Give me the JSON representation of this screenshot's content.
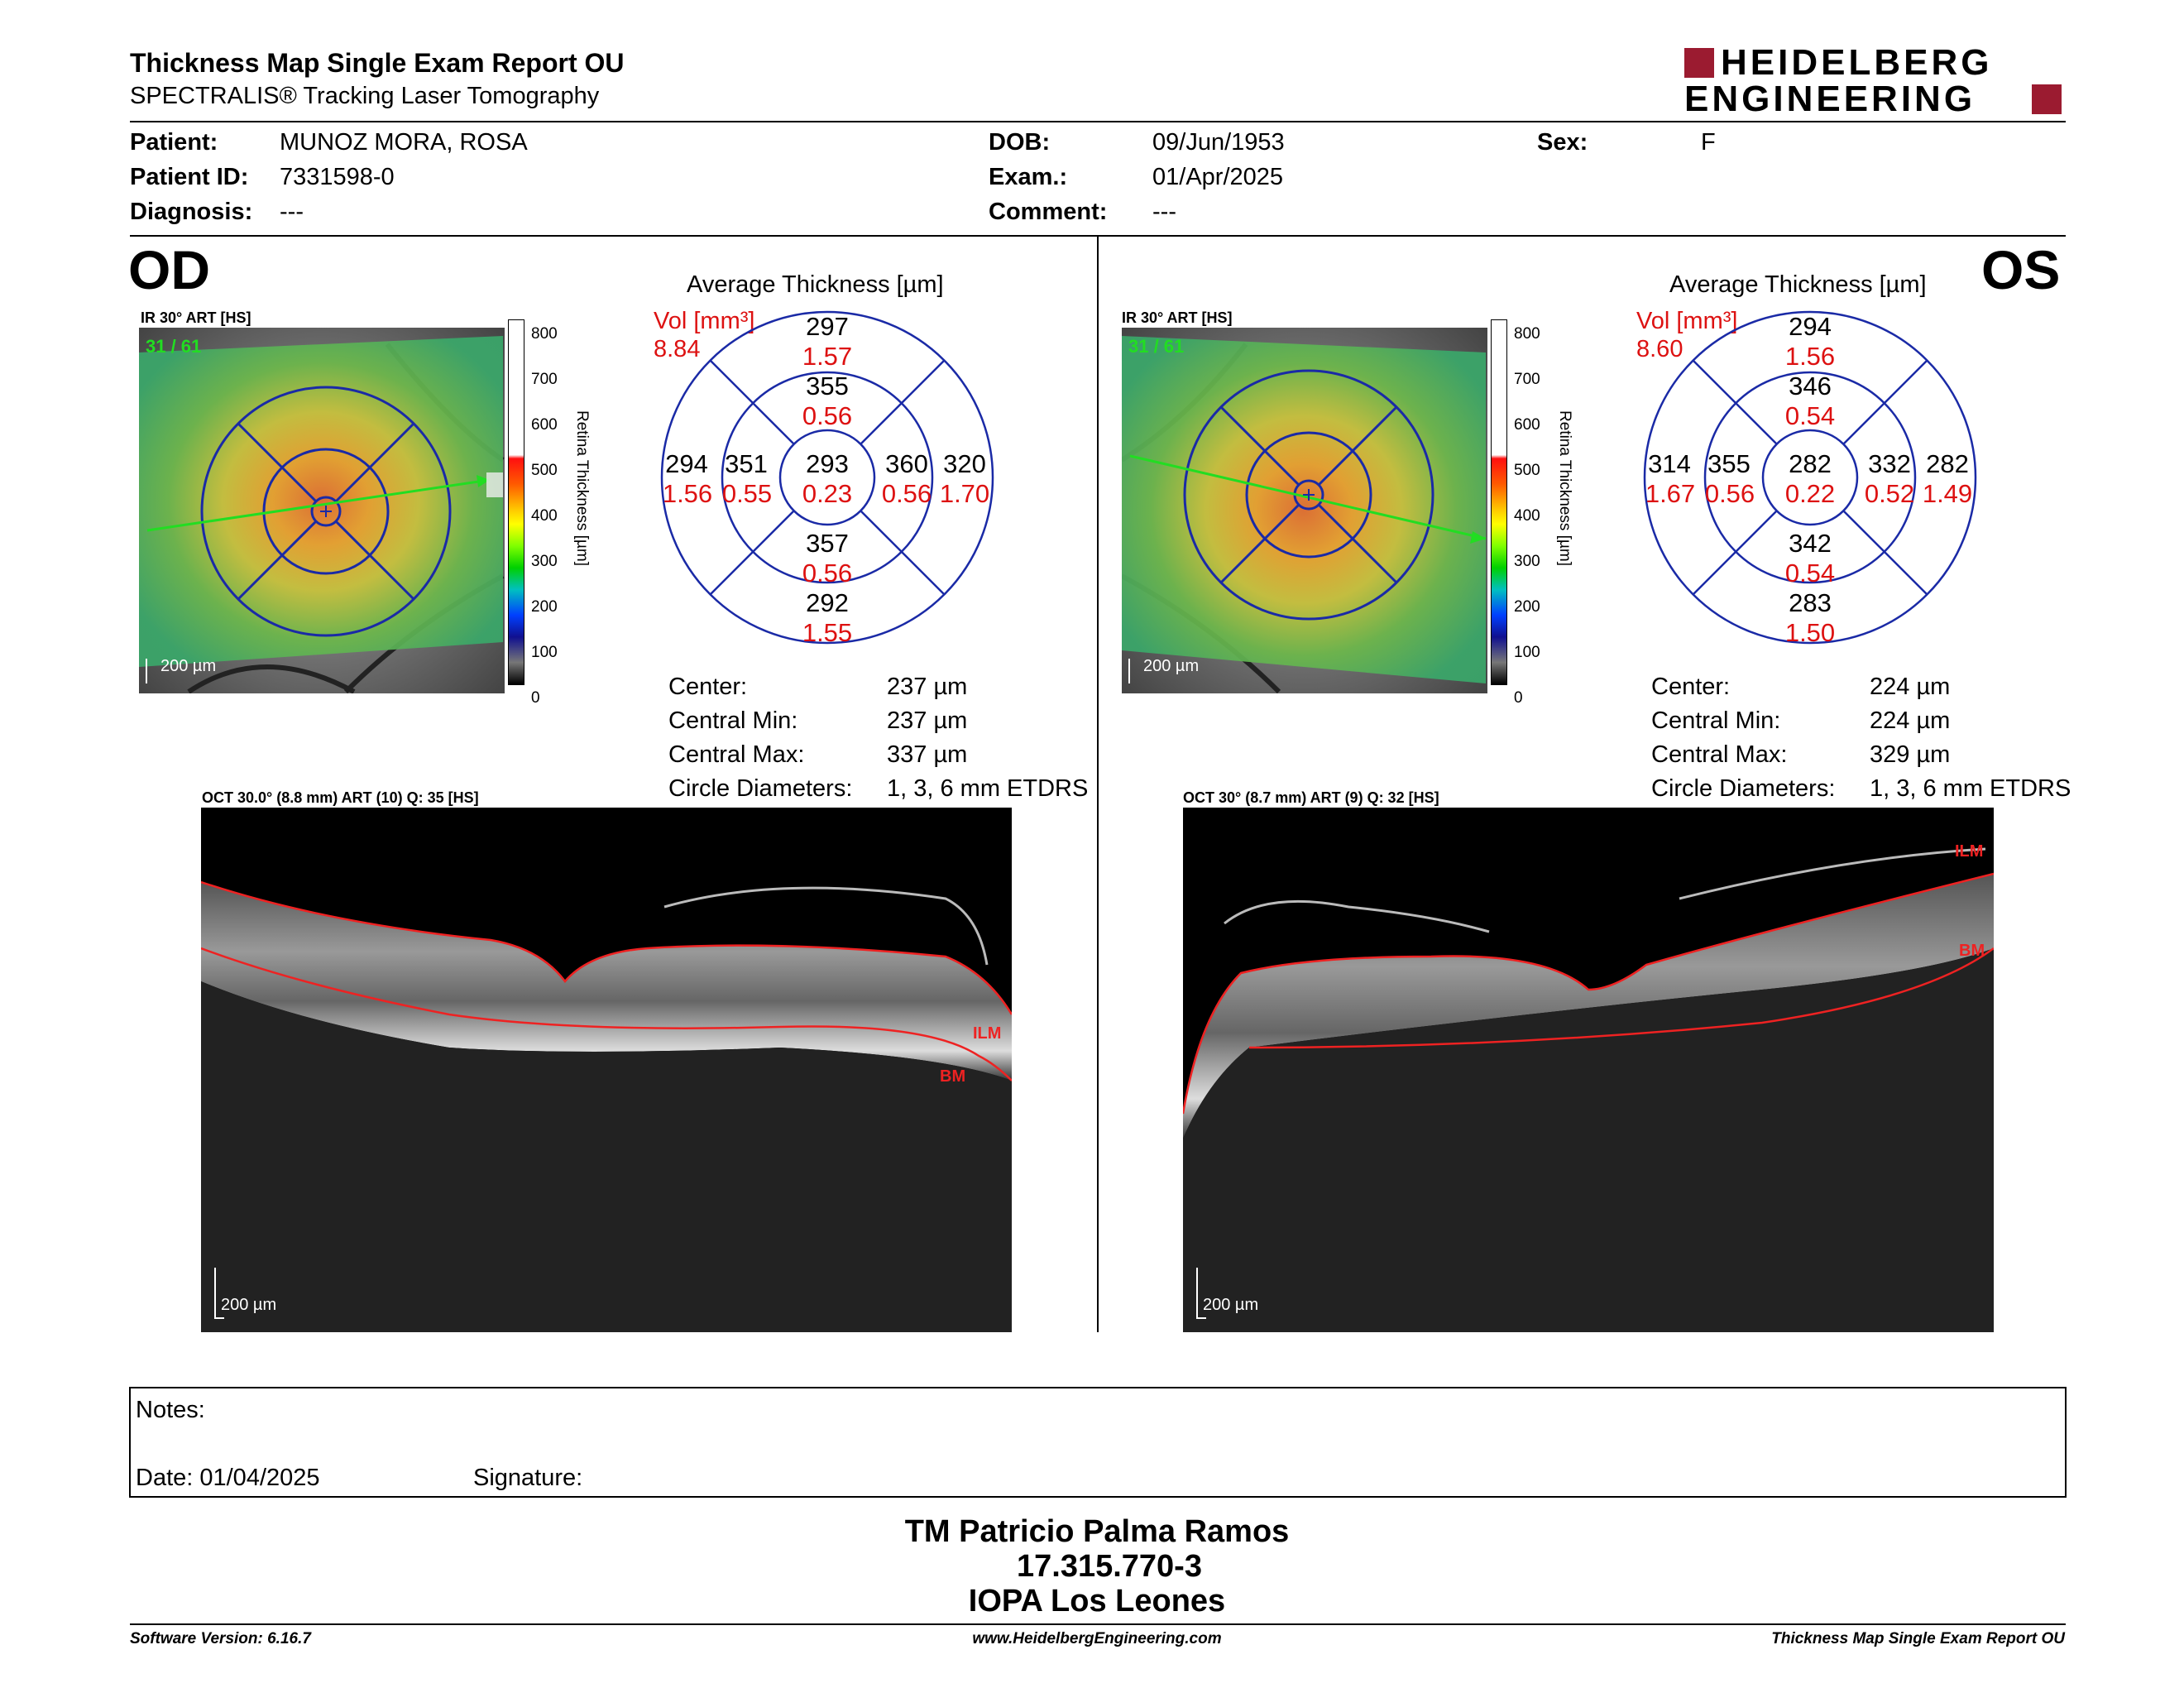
{
  "header": {
    "title": "Thickness Map Single Exam Report OU",
    "subtitle": "SPECTRALIS® Tracking Laser Tomography",
    "logo_line1": "HEIDELBERG",
    "logo_line2": "ENGINEERING"
  },
  "patient": {
    "patient_label": "Patient:",
    "patient_value": "MUNOZ MORA, ROSA",
    "id_label": "Patient ID:",
    "id_value": "7331598-0",
    "diagnosis_label": "Diagnosis:",
    "diagnosis_value": "---",
    "dob_label": "DOB:",
    "dob_value": "09/Jun/1953",
    "exam_label": "Exam.:",
    "exam_value": "01/Apr/2025",
    "comment_label": "Comment:",
    "comment_value": "---",
    "sex_label": "Sex:",
    "sex_value": "F"
  },
  "od": {
    "eye": "OD",
    "ir_label": "IR 30° ART [HS]",
    "frames": "31 / 61",
    "scale": "200 µm",
    "avg_title": "Average Thickness [µm]",
    "vol_label": "Vol [mm³]",
    "vol_value": "8.84",
    "sectors": {
      "outer_sup": {
        "t": "297",
        "v": "1.57"
      },
      "inner_sup": {
        "t": "355",
        "v": "0.56"
      },
      "outer_left": {
        "t": "294",
        "v": "1.56"
      },
      "inner_left": {
        "t": "351",
        "v": "0.55"
      },
      "center": {
        "t": "293",
        "v": "0.23"
      },
      "inner_right": {
        "t": "360",
        "v": "0.56"
      },
      "outer_right": {
        "t": "320",
        "v": "1.70"
      },
      "inner_inf": {
        "t": "357",
        "v": "0.56"
      },
      "outer_inf": {
        "t": "292",
        "v": "1.55"
      }
    },
    "stats": [
      {
        "label": "Center:",
        "value": "237 µm"
      },
      {
        "label": "Central Min:",
        "value": "237 µm"
      },
      {
        "label": "Central Max:",
        "value": "337 µm"
      },
      {
        "label": "Circle Diameters:",
        "value": "1, 3, 6 mm ETDRS"
      }
    ],
    "oct_label": "OCT 30.0° (8.8 mm) ART (10) Q: 35 [HS]",
    "oct_scale": "200 µm",
    "ilm": "ILM",
    "bm": "BM"
  },
  "os": {
    "eye": "OS",
    "ir_label": "IR 30° ART [HS]",
    "frames": "31 / 61",
    "scale": "200 µm",
    "avg_title": "Average Thickness [µm]",
    "vol_label": "Vol [mm³]",
    "vol_value": "8.60",
    "sectors": {
      "outer_sup": {
        "t": "294",
        "v": "1.56"
      },
      "inner_sup": {
        "t": "346",
        "v": "0.54"
      },
      "outer_left": {
        "t": "314",
        "v": "1.67"
      },
      "inner_left": {
        "t": "355",
        "v": "0.56"
      },
      "center": {
        "t": "282",
        "v": "0.22"
      },
      "inner_right": {
        "t": "332",
        "v": "0.52"
      },
      "outer_right": {
        "t": "282",
        "v": "1.49"
      },
      "inner_inf": {
        "t": "342",
        "v": "0.54"
      },
      "outer_inf": {
        "t": "283",
        "v": "1.50"
      }
    },
    "stats": [
      {
        "label": "Center:",
        "value": "224 µm"
      },
      {
        "label": "Central Min:",
        "value": "224 µm"
      },
      {
        "label": "Central Max:",
        "value": "329 µm"
      },
      {
        "label": "Circle Diameters:",
        "value": "1, 3, 6 mm ETDRS"
      }
    ],
    "oct_label": "OCT 30° (8.7 mm) ART (9) Q: 32 [HS]",
    "oct_scale": "200 µm",
    "ilm": "ILM",
    "bm": "BM"
  },
  "colorbar": {
    "ticks": [
      "800",
      "700",
      "600",
      "500",
      "400",
      "300",
      "200",
      "100",
      "0"
    ],
    "label": "Retina  Thickness [µm]"
  },
  "notes": {
    "notes_label": "Notes:",
    "date_label": "Date: 01/04/2025",
    "signature_label": "Signature:"
  },
  "footer": {
    "signer_name": "TM Patricio Palma Ramos",
    "signer_id": "17.315.770-3",
    "signer_org": "IOPA Los Leones",
    "software": "Software Version: 6.16.7",
    "website": "www.HeidelbergEngineering.com",
    "report": "Thickness Map Single Exam Report OU"
  },
  "colors": {
    "brand_red": "#9b1b30",
    "volume_red": "#d11111",
    "grid_blue": "#1a2aa6",
    "scan_green": "#22dd22"
  }
}
